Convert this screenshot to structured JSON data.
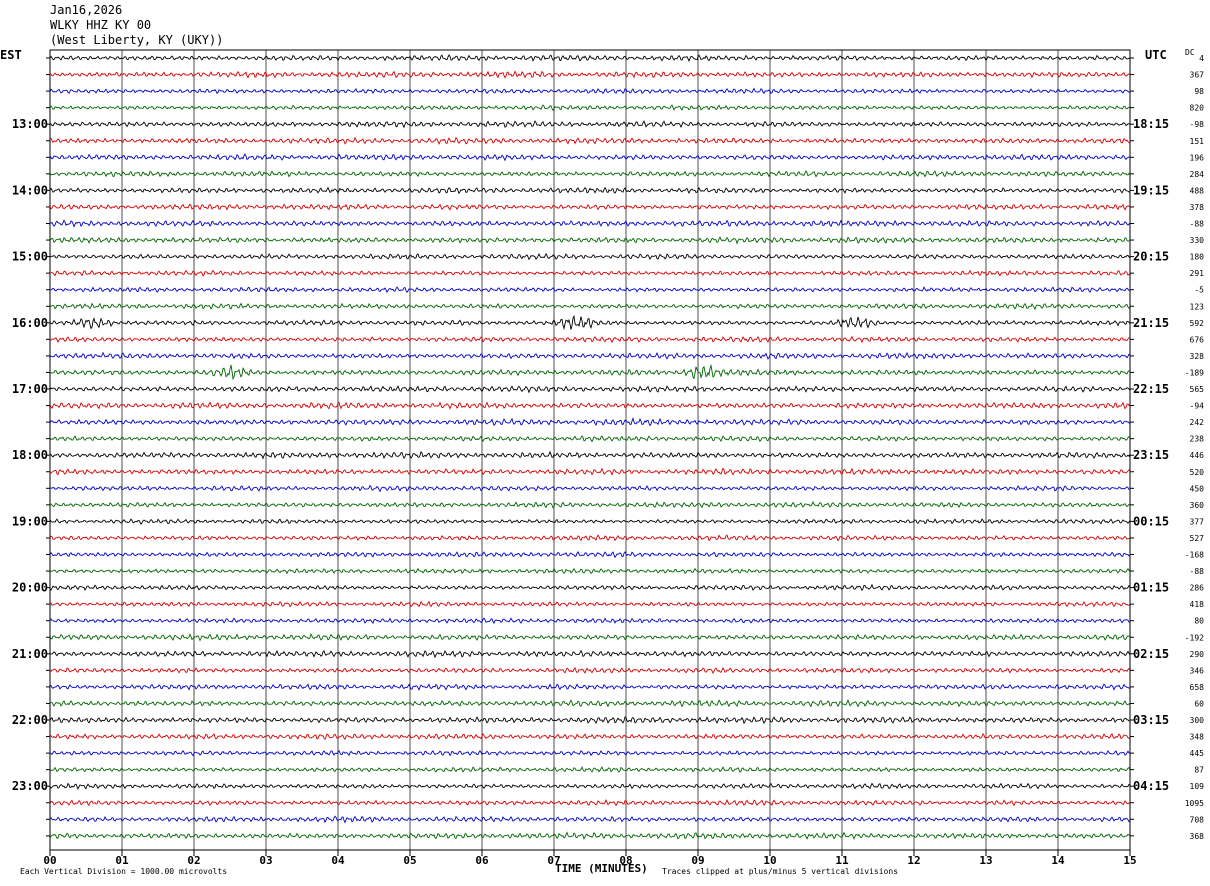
{
  "header": {
    "date": "Jan16,2026",
    "station": "WLKY HHZ KY 00",
    "location": "(West Liberty, KY (UKY))"
  },
  "left_axis_label": "EST",
  "right_axis_label": "UTC",
  "dc_label": "DC",
  "footer": {
    "scale_note": "Each Vertical Division = 1000.00 microvolts",
    "xaxis_title": "TIME (MINUTES)",
    "clip_note": "Traces clipped at plus/minus 5 vertical divisions"
  },
  "colors": {
    "trace_cycle": [
      "#000000",
      "#d40000",
      "#0000c8",
      "#006400"
    ],
    "grid": "#000000",
    "background": "#ffffff"
  },
  "chart_data": {
    "type": "line",
    "subtype": "helicorder",
    "x_ticks": [
      "00",
      "01",
      "02",
      "03",
      "04",
      "05",
      "06",
      "07",
      "08",
      "09",
      "10",
      "11",
      "12",
      "13",
      "14",
      "15"
    ],
    "xlim": [
      0,
      15
    ],
    "xlabel": "TIME (MINUTES)",
    "traces_per_hour": 4,
    "est_hour_labels": [
      "13:00",
      "14:00",
      "15:00",
      "16:00",
      "17:00",
      "18:00",
      "19:00",
      "20:00",
      "21:00",
      "22:00",
      "23:00"
    ],
    "utc_hour_labels": [
      "18:15",
      "19:15",
      "20:15",
      "21:15",
      "22:15",
      "23:15",
      "00:15",
      "01:15",
      "02:15",
      "03:15",
      "04:15"
    ],
    "dc_offsets": [
      "4",
      "367",
      "98",
      "820",
      "-98",
      "151",
      "196",
      "284",
      "488",
      "378",
      "-88",
      "330",
      "180",
      "291",
      "-5",
      "123",
      "592",
      "676",
      "328",
      "-189",
      "565",
      "-94",
      "242",
      "238",
      "446",
      "520",
      "450",
      "360",
      "377",
      "527",
      "-168",
      "-88",
      "286",
      "418",
      "80",
      "-192",
      "290",
      "346",
      "658",
      "60",
      "300",
      "348",
      "445",
      "87",
      "109",
      "1095",
      "708",
      "368"
    ],
    "trace_count": 48,
    "notable_events": [
      {
        "trace": 16,
        "minute": 0.6,
        "amplitude": 1.6
      },
      {
        "trace": 16,
        "minute": 7.3,
        "amplitude": 1.9
      },
      {
        "trace": 16,
        "minute": 11.2,
        "amplitude": 1.5
      },
      {
        "trace": 19,
        "minute": 2.5,
        "amplitude": 1.8
      },
      {
        "trace": 19,
        "minute": 9.1,
        "amplitude": 2.0
      }
    ]
  }
}
